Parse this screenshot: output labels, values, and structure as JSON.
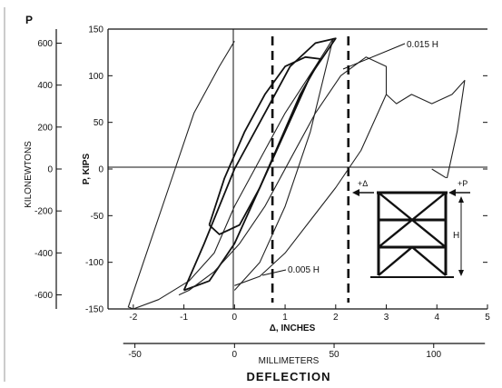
{
  "chart_data": {
    "type": "line",
    "xlabel": "Δ, INCHES",
    "ylabel": "P, KIPS",
    "xlim": [
      -2.5,
      5
    ],
    "ylim": [
      -150,
      150
    ],
    "x_ticks": [
      "-2",
      "-1",
      "0",
      "1",
      "2",
      "3",
      "4",
      "5"
    ],
    "y_ticks": [
      "-150",
      "-100",
      "-50",
      "0",
      "50",
      "100",
      "150"
    ],
    "secondary_x": {
      "label": "MILLIMETERS",
      "ticks": [
        "-50",
        "0",
        "50",
        "100"
      ]
    },
    "secondary_y": {
      "label": "KILONEWTONS",
      "header": "P",
      "ticks": [
        "600",
        "400",
        "200",
        "0",
        "-200",
        "-400",
        "-600"
      ]
    },
    "caption": "DEFLECTION",
    "annotations": [
      {
        "text": "0.015 H",
        "points_to": [
          2.3,
          110
        ]
      },
      {
        "text": "0.005 H",
        "points_to": [
          0.8,
          -130
        ]
      }
    ],
    "dashed_lines_x": [
      0.75,
      2.25
    ],
    "grid": false,
    "series": [
      {
        "x": [
          0.0,
          0.5,
          1.0,
          1.5,
          1.95,
          1.6,
          1.0,
          0.4,
          0.0,
          -0.4,
          -0.9,
          -1.5,
          -2.0,
          -2.1,
          -1.8,
          -1.3,
          -0.8,
          -0.3,
          0.0
        ],
        "y": [
          -130,
          -100,
          -40,
          40,
          140,
          110,
          60,
          0,
          -40,
          -90,
          -120,
          -140,
          -150,
          -148,
          -100,
          -20,
          60,
          110,
          137
        ]
      },
      {
        "x": [
          -1.0,
          -0.6,
          0.0,
          0.6,
          1.1,
          1.6,
          2.0,
          1.5,
          1.0,
          0.5,
          0.0,
          -0.5,
          -1.0
        ],
        "y": [
          -130,
          -80,
          0,
          60,
          110,
          135,
          140,
          100,
          40,
          -20,
          -80,
          -120,
          -130
        ]
      },
      {
        "x": [
          -0.5,
          -0.2,
          0.2,
          0.6,
          1.0,
          1.4,
          1.7,
          1.3,
          0.9,
          0.5,
          0.1,
          -0.3,
          -0.5
        ],
        "y": [
          -60,
          -10,
          40,
          80,
          110,
          120,
          118,
          80,
          30,
          -20,
          -60,
          -70,
          -60
        ]
      },
      {
        "x": [
          0.0,
          0.5,
          1.0,
          1.5,
          2.0,
          2.5,
          3.0,
          3.0,
          2.6,
          2.1,
          1.6,
          1.1,
          0.6,
          0.1,
          -0.4,
          -0.9,
          -1.1
        ],
        "y": [
          -125,
          -115,
          -90,
          -55,
          -20,
          20,
          80,
          110,
          120,
          100,
          60,
          10,
          -40,
          -80,
          -110,
          -130,
          -135
        ]
      },
      {
        "x": [
          3.0,
          3.2,
          3.5,
          3.9,
          4.3,
          4.55,
          4.4,
          4.2,
          3.9
        ],
        "y": [
          80,
          70,
          80,
          70,
          80,
          95,
          40,
          -10,
          0
        ]
      }
    ]
  }
}
